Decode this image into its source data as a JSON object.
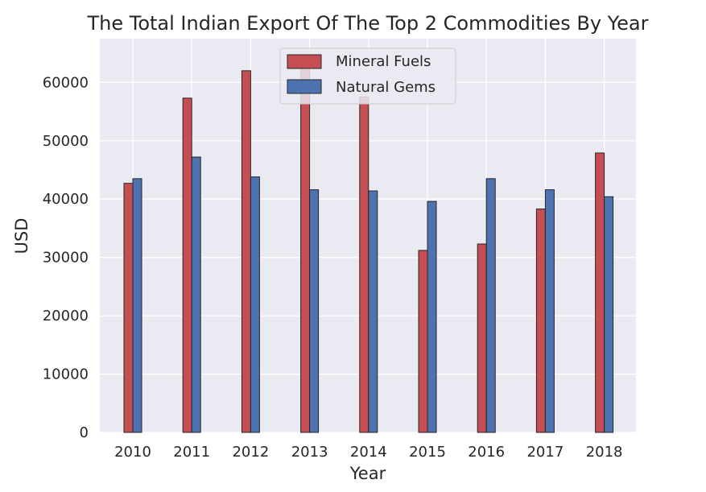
{
  "chart_data": {
    "type": "bar",
    "title": "The Total Indian Export Of The Top 2 Commodities By Year",
    "xlabel": "Year",
    "ylabel": "USD",
    "categories": [
      "2010",
      "2011",
      "2012",
      "2013",
      "2014",
      "2015",
      "2016",
      "2017",
      "2018"
    ],
    "series": [
      {
        "name": "Mineral Fuels",
        "color": "#c44e52",
        "values": [
          42700,
          57300,
          62000,
          63100,
          57500,
          31200,
          32300,
          38300,
          47900
        ]
      },
      {
        "name": "Natural Gems",
        "color": "#4c72b0",
        "values": [
          43500,
          47200,
          43800,
          41600,
          41400,
          39600,
          43500,
          41600,
          40400
        ]
      }
    ],
    "ylim": [
      0,
      67500
    ],
    "yticks": [
      0,
      10000,
      20000,
      30000,
      40000,
      50000,
      60000
    ],
    "grid": true,
    "legend_position": "top-center",
    "background_color": "#eaeaf2",
    "grid_color": "#ffffff"
  }
}
